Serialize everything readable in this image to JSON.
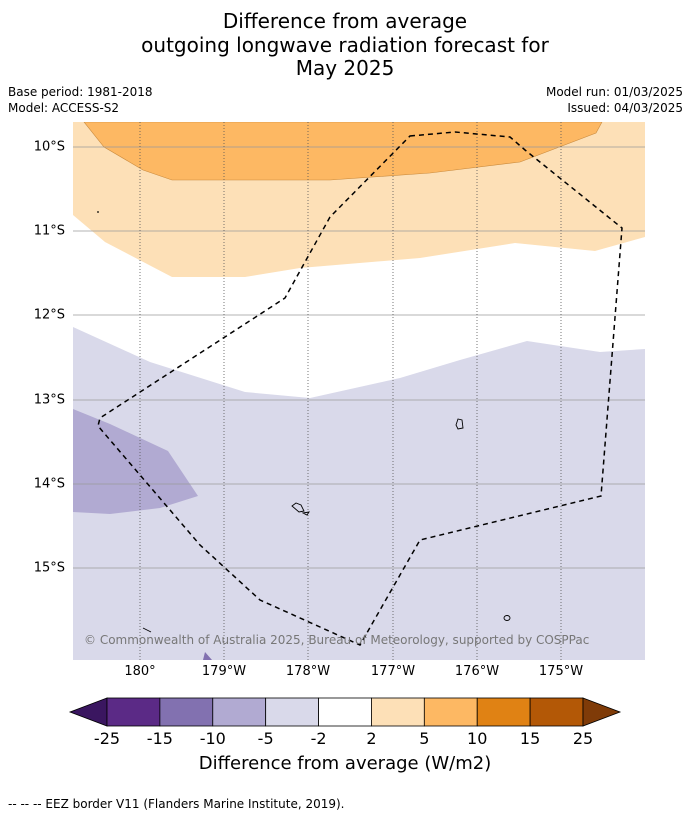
{
  "title_lines": [
    "Difference from average",
    "outgoing longwave radiation forecast for",
    "May 2025"
  ],
  "meta": {
    "base_period": "Base period: 1981-2018",
    "model": "Model: ACCESS-S2",
    "model_run": "Model run: 01/03/2025",
    "issued": "Issued: 04/03/2025"
  },
  "map": {
    "lat_labels": [
      "10°S",
      "11°S",
      "12°S",
      "13°S",
      "14°S",
      "15°S"
    ],
    "lon_labels": [
      "180°",
      "179°W",
      "178°W",
      "177°W",
      "176°W",
      "175°W"
    ],
    "copyright": "© Commonwealth of Australia 2025, Bureau of Meteorology, supported by COSPPac"
  },
  "colorbar": {
    "labels": [
      "-25",
      "-15",
      "-10",
      "-5",
      "-2",
      "2",
      "5",
      "10",
      "15",
      "25"
    ],
    "colors": [
      "#3a1660",
      "#5b2a86",
      "#8271b0",
      "#b1aad2",
      "#d9d9ea",
      "#ffffff",
      "#fde0b7",
      "#fdb863",
      "#e08214",
      "#b35806",
      "#7f3b08"
    ],
    "title": "Difference from average (W/m2)"
  },
  "footer": "--  --  -- EEZ border V11 (Flanders Marine Institute, 2019)."
}
